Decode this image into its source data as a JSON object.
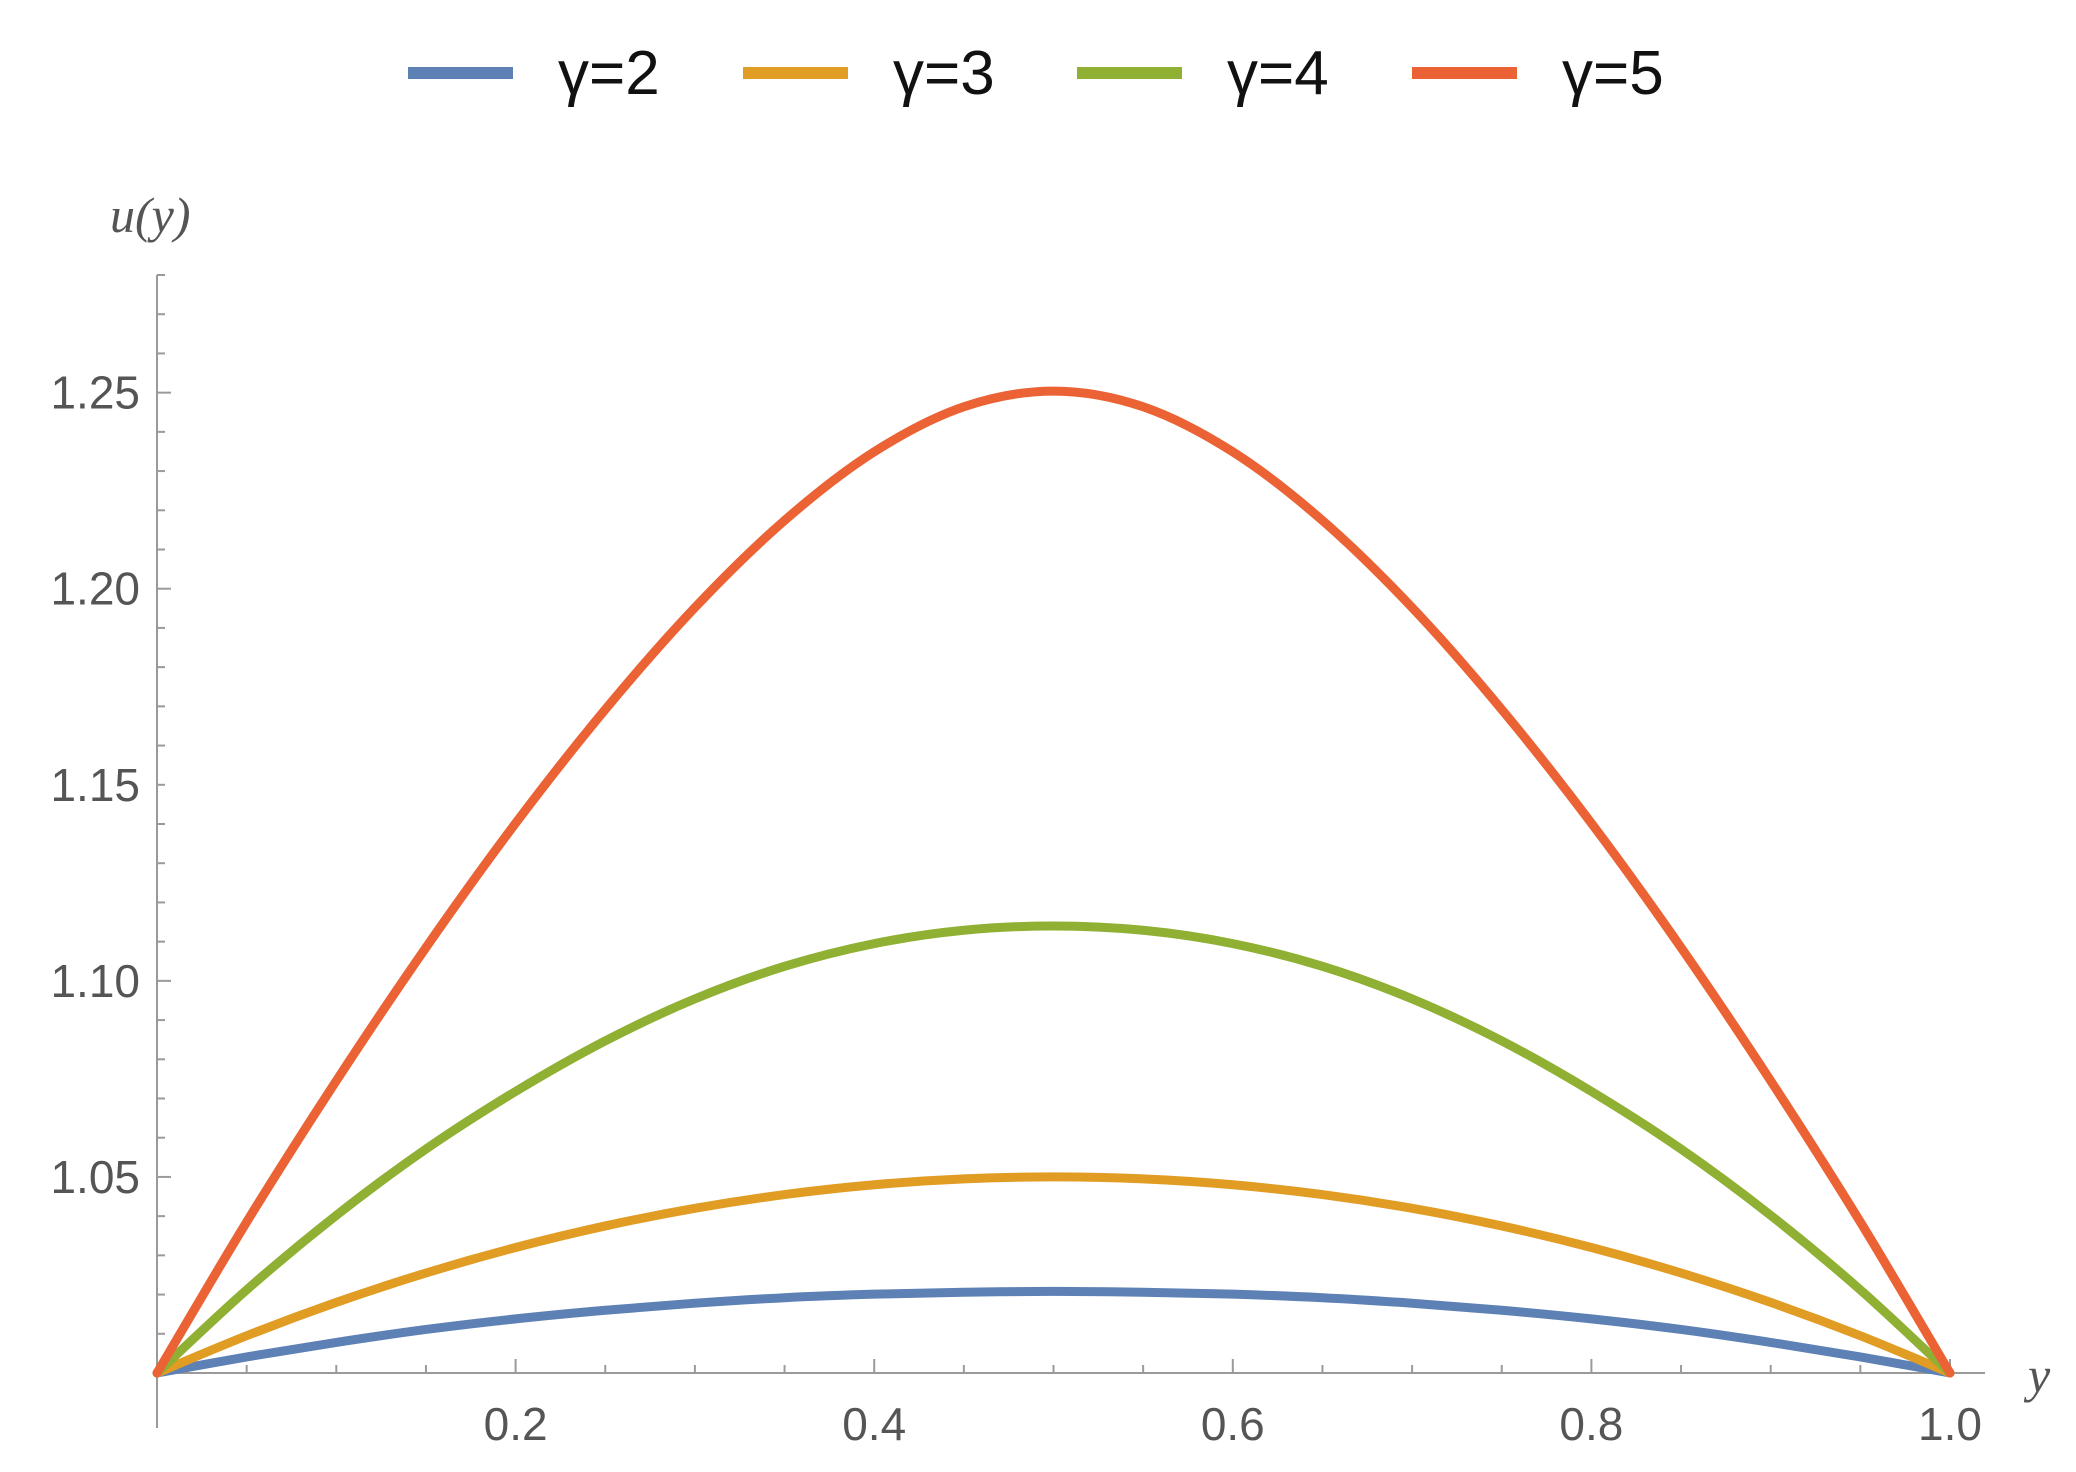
{
  "chart_data": {
    "type": "line",
    "title": "",
    "xlabel": "y",
    "ylabel": "u(y)",
    "xlim": [
      0.0,
      1.0
    ],
    "ylim": [
      1.0,
      1.28
    ],
    "x_ticks": [
      0.2,
      0.4,
      0.6,
      0.8,
      1.0
    ],
    "x_tick_labels": [
      "0.2",
      "0.4",
      "0.6",
      "0.8",
      "1.0"
    ],
    "y_ticks": [
      1.05,
      1.1,
      1.15,
      1.2,
      1.25
    ],
    "y_tick_labels": [
      "1.05",
      "1.10",
      "1.15",
      "1.20",
      "1.25"
    ],
    "grid": false,
    "legend_position": "top-center",
    "x": [
      0.0,
      0.05,
      0.1,
      0.15,
      0.2,
      0.25,
      0.3,
      0.35,
      0.4,
      0.45,
      0.5,
      0.55,
      0.6,
      0.65,
      0.7,
      0.75,
      0.8,
      0.85,
      0.9,
      0.95,
      1.0
    ],
    "series": [
      {
        "name": "γ=2",
        "color": "#5e81b5",
        "values": [
          1.0,
          1.0041,
          1.0078,
          1.0111,
          1.0138,
          1.016,
          1.0178,
          1.0192,
          1.0201,
          1.0206,
          1.0208,
          1.0206,
          1.0201,
          1.0192,
          1.0178,
          1.016,
          1.0138,
          1.0111,
          1.0078,
          1.0041,
          1.0
        ]
      },
      {
        "name": "γ=3",
        "color": "#e19c24",
        "values": [
          1.0,
          1.0095,
          1.018,
          1.0255,
          1.032,
          1.0375,
          1.042,
          1.0455,
          1.048,
          1.0495,
          1.05,
          1.0495,
          1.048,
          1.0455,
          1.042,
          1.0375,
          1.032,
          1.0255,
          1.018,
          1.0095,
          1.0
        ]
      },
      {
        "name": "γ=4",
        "color": "#8fb032",
        "values": [
          1.0,
          1.0212,
          1.0402,
          1.0571,
          1.0718,
          1.0847,
          1.0954,
          1.1037,
          1.1095,
          1.1129,
          1.114,
          1.1129,
          1.1095,
          1.1037,
          1.0954,
          1.0847,
          1.0718,
          1.0571,
          1.0402,
          1.0212,
          1.0
        ]
      },
      {
        "name": "γ=5",
        "color": "#eb6235",
        "values": [
          1.0,
          1.0385,
          1.0745,
          1.1085,
          1.1402,
          1.1692,
          1.1952,
          1.2174,
          1.2349,
          1.2464,
          1.2504,
          1.2464,
          1.2349,
          1.2174,
          1.1952,
          1.1692,
          1.1402,
          1.1085,
          1.0745,
          1.0385,
          1.0
        ]
      }
    ]
  }
}
